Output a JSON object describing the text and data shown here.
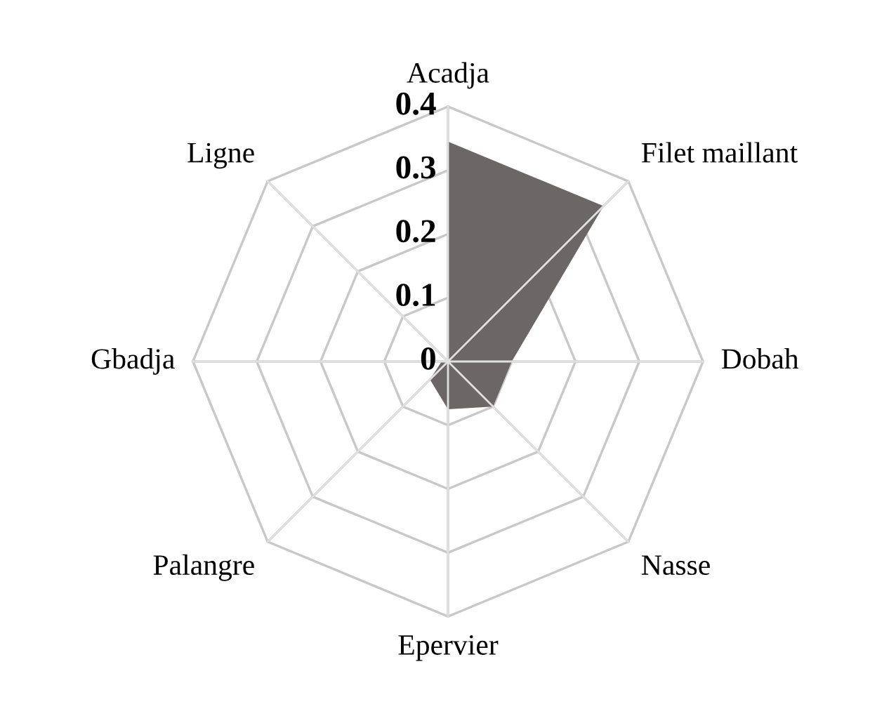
{
  "chart_data": {
    "type": "radar",
    "categories": [
      "Acadja",
      "Filet maillant",
      "Dobah",
      "Nasse",
      "Epervier",
      "Palangre",
      "Gbadja",
      "Ligne"
    ],
    "series": [
      {
        "color": "#6b6767",
        "values": [
          0.345,
          0.345,
          0.1,
          0.1,
          0.075,
          0.04,
          0.01,
          0
        ]
      }
    ],
    "ylim": [
      0,
      0.4
    ],
    "yticks": [
      0,
      0.1,
      0.2,
      0.3,
      0.4
    ],
    "grid": true,
    "legend": false
  }
}
